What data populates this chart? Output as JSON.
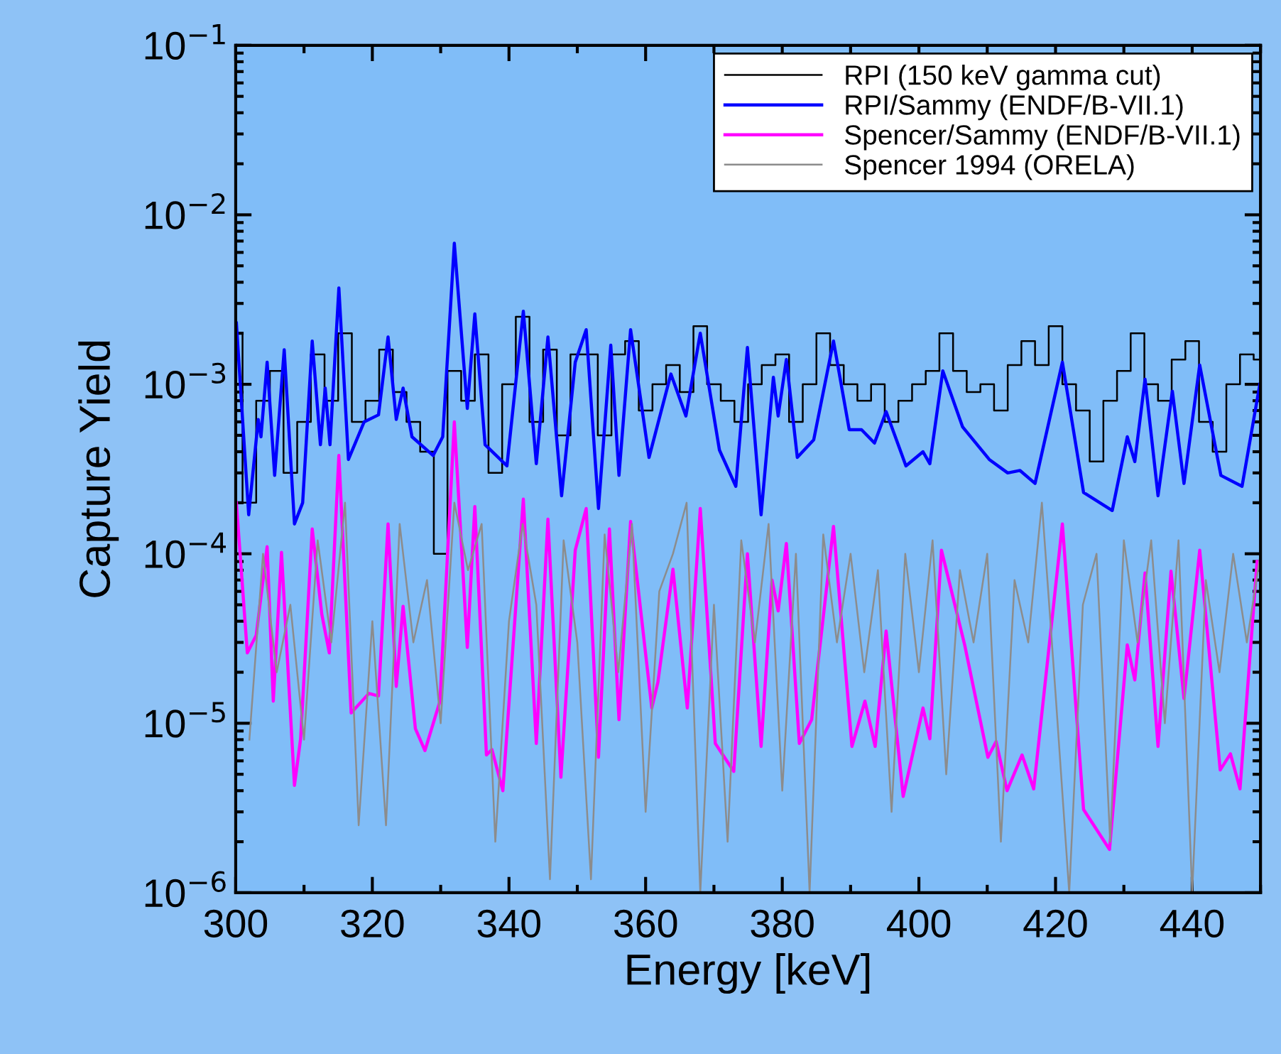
{
  "chart_data": {
    "type": "line",
    "xlabel": "Energy [keV]",
    "ylabel": "Capture Yield",
    "log": "y",
    "grid": false,
    "legend": "top right",
    "xlim": [
      300,
      450
    ],
    "xticks": [
      300,
      320,
      340,
      360,
      380,
      400,
      420,
      440
    ],
    "ylim": [
      1e-06,
      0.1
    ],
    "yticks": [
      {
        "value": 1e-06,
        "label": "10$^{−6}$"
      },
      {
        "value": 1e-05,
        "label": "10$^{−5}$"
      },
      {
        "value": 0.0001,
        "label": "10$^{−4}$"
      },
      {
        "value": 0.001,
        "label": "10$^{−3}$"
      },
      {
        "value": 0.01,
        "label": "10$^{−2}$"
      },
      {
        "value": 0.1,
        "label": "10$^{−1}$"
      }
    ],
    "series": [
      {
        "name": "RPI (150 keV gamma cut)",
        "type": "step",
        "color": "#000000",
        "x": [
          300,
          302,
          304,
          306,
          308,
          310,
          312,
          314,
          316,
          318,
          320,
          322,
          324,
          326,
          328,
          330,
          332,
          334,
          336,
          338,
          340,
          342,
          344,
          346,
          348,
          350,
          352,
          354,
          356,
          358,
          360,
          362,
          364,
          366,
          368,
          370,
          372,
          374,
          376,
          378,
          380,
          382,
          384,
          386,
          388,
          390,
          392,
          394,
          396,
          398,
          400,
          402,
          404,
          406,
          408,
          410,
          412,
          414,
          416,
          418,
          420,
          422,
          424,
          426,
          428,
          430,
          432,
          434,
          436,
          438,
          440,
          442,
          444,
          446,
          448,
          450
        ],
        "values": [
          0.002,
          0.0002,
          0.0008,
          0.0012,
          0.0003,
          0.0006,
          0.0015,
          0.0008,
          0.002,
          0.0006,
          0.0008,
          0.0016,
          0.0009,
          0.0006,
          0.0004,
          0.0001,
          0.0012,
          0.0008,
          0.0015,
          0.0003,
          0.001,
          0.0025,
          0.0006,
          0.0016,
          0.0005,
          0.0015,
          0.0015,
          0.0005,
          0.0015,
          0.0018,
          0.0007,
          0.001,
          0.0013,
          0.0009,
          0.0022,
          0.001,
          0.0008,
          0.0006,
          0.001,
          0.0013,
          0.0015,
          0.0006,
          0.001,
          0.002,
          0.0013,
          0.001,
          0.0008,
          0.001,
          0.0006,
          0.0008,
          0.001,
          0.0012,
          0.002,
          0.0012,
          0.0009,
          0.001,
          0.0007,
          0.0013,
          0.0018,
          0.0013,
          0.0022,
          0.001,
          0.0007,
          0.00035,
          0.0008,
          0.0012,
          0.002,
          0.001,
          0.0008,
          0.0014,
          0.0018,
          0.0006,
          0.0004,
          0.001,
          0.0015,
          0.0014
        ]
      },
      {
        "name": "RPI/Sammy (ENDF/B-VII.1)",
        "color": "#0000ff",
        "x": [
          300.1,
          301.9,
          303.3,
          303.7,
          304.6,
          305.7,
          307.1,
          308.6,
          309.8,
          311.2,
          312.4,
          313.1,
          313.8,
          315.1,
          316.5,
          318.8,
          320.9,
          322.3,
          323.5,
          324.5,
          325.8,
          328.9,
          330.3,
          332.0,
          333.9,
          335.0,
          336.5,
          339.7,
          342.1,
          344.0,
          345.7,
          347.7,
          349.7,
          351.3,
          353.1,
          354.9,
          356.1,
          357.8,
          360.5,
          363.7,
          365.9,
          368.0,
          370.8,
          373.2,
          374.9,
          376.9,
          378.7,
          379.4,
          380.6,
          382.2,
          384.6,
          387.5,
          389.8,
          391.6,
          393.5,
          395.2,
          398.1,
          400.6,
          401.6,
          403.5,
          406.4,
          410.3,
          413.0,
          414.8,
          417.0,
          421.0,
          424.1,
          428.3,
          430.5,
          431.6,
          433.1,
          435.0,
          437.1,
          438.8,
          441.1,
          444.2,
          447.3,
          449.9
        ],
        "values": [
          0.0023,
          0.00017,
          0.00062,
          0.00049,
          0.00135,
          0.00029,
          0.0016,
          0.00015,
          0.0002,
          0.0018,
          0.00044,
          0.00095,
          0.00044,
          0.0037,
          0.00036,
          0.0006,
          0.00066,
          0.0019,
          0.00062,
          0.00095,
          0.00049,
          0.00038,
          0.00049,
          0.0068,
          0.00072,
          0.0026,
          0.00044,
          0.00033,
          0.0027,
          0.00034,
          0.0019,
          0.00022,
          0.00135,
          0.0021,
          0.000185,
          0.0017,
          0.00029,
          0.0021,
          0.00037,
          0.00115,
          0.00065,
          0.002,
          0.00041,
          0.00025,
          0.00165,
          0.00017,
          0.0011,
          0.00065,
          0.0014,
          0.00037,
          0.00047,
          0.0018,
          0.00054,
          0.00054,
          0.00045,
          0.00069,
          0.00033,
          0.0004,
          0.00034,
          0.0012,
          0.00056,
          0.00036,
          0.0003,
          0.00031,
          0.00026,
          0.00135,
          0.00023,
          0.00018,
          0.00049,
          0.00035,
          0.00107,
          0.00022,
          0.00091,
          0.00026,
          0.0013,
          0.00029,
          0.00025,
          0.001
        ]
      },
      {
        "name": "Spencer/Sammy (ENDF/B-VII.1)",
        "color": "#ff00ff",
        "x": [
          300.1,
          301.7,
          303.0,
          304.6,
          305.5,
          306.7,
          308.6,
          309.5,
          311.2,
          312.6,
          313.7,
          315.1,
          316.9,
          319.5,
          320.9,
          322.3,
          323.5,
          324.5,
          326.3,
          327.7,
          329.9,
          332.0,
          333.9,
          335.0,
          336.7,
          337.5,
          339.1,
          342.1,
          344.0,
          345.7,
          347.6,
          349.7,
          351.3,
          353.1,
          354.7,
          356.1,
          357.8,
          360.9,
          361.8,
          364.0,
          366.1,
          368.0,
          370.2,
          372.9,
          374.9,
          376.9,
          378.5,
          379.4,
          380.6,
          382.5,
          384.3,
          387.5,
          390.2,
          392.1,
          393.6,
          395.2,
          397.7,
          400.6,
          401.6,
          403.3,
          406.7,
          410.1,
          411.3,
          412.9,
          415.1,
          416.8,
          421.0,
          424.1,
          427.9,
          430.5,
          431.6,
          433.1,
          435.0,
          436.9,
          438.8,
          441.1,
          444.1,
          445.6,
          447.0,
          449.5
        ],
        "values": [
          0.0002,
          2.6e-05,
          3.3e-05,
          0.00011,
          1.35e-05,
          0.000102,
          4.3e-06,
          8.1e-06,
          0.00014,
          4.4e-05,
          2.6e-05,
          0.00038,
          1.15e-05,
          1.5e-05,
          1.45e-05,
          0.00015,
          1.65e-05,
          4.9e-05,
          9.3e-06,
          6.9e-06,
          1.35e-05,
          0.0006,
          2.8e-05,
          0.00019,
          6.5e-06,
          7e-06,
          4e-06,
          0.00021,
          7.6e-06,
          0.00016,
          4.8e-06,
          0.000105,
          0.000185,
          6.3e-06,
          0.00014,
          1.05e-05,
          0.000155,
          1.23e-05,
          1.75e-05,
          8.1e-05,
          1.23e-05,
          0.000185,
          7.6e-06,
          5.2e-06,
          0.0001,
          7.3e-06,
          7e-05,
          4.6e-05,
          0.000115,
          7.6e-06,
          1.05e-05,
          0.000145,
          7.3e-06,
          1.35e-05,
          7.3e-06,
          3.5e-05,
          3.7e-06,
          1.23e-05,
          8.1e-06,
          0.000105,
          2.9e-05,
          6.3e-06,
          7.8e-06,
          4e-06,
          6.5e-06,
          4.1e-06,
          0.00015,
          3.1e-06,
          1.8e-06,
          2.9e-05,
          1.8e-05,
          7.7e-05,
          7.3e-06,
          7.9e-05,
          1.4e-05,
          0.000105,
          5.3e-06,
          6.6e-06,
          4.1e-06,
          9e-05
        ]
      },
      {
        "name": "Spencer 1994 (ORELA)",
        "color": "#8c8c8c",
        "x": [
          302,
          304,
          306,
          308,
          310,
          312,
          314,
          316,
          318,
          320,
          322,
          324,
          326,
          328,
          330,
          332,
          334,
          336,
          338,
          340,
          342,
          344,
          346,
          348,
          350,
          352,
          354,
          356,
          358,
          360,
          362,
          364,
          366,
          368,
          370,
          372,
          374,
          376,
          378,
          380,
          382,
          384,
          386,
          388,
          390,
          392,
          394,
          396,
          398,
          400,
          402,
          404,
          406,
          408,
          410,
          412,
          414,
          416,
          418,
          420,
          422,
          424,
          426,
          428,
          430,
          432,
          434,
          436,
          438,
          440,
          442,
          444,
          446,
          448,
          450
        ],
        "values": [
          8e-06,
          0.0001,
          2e-05,
          5e-05,
          8e-06,
          0.00012,
          3e-05,
          0.0002,
          2.5e-06,
          4e-05,
          2.5e-06,
          0.00015,
          3e-05,
          7e-05,
          1e-05,
          0.0002,
          8e-05,
          0.00015,
          2e-06,
          4e-05,
          0.00015,
          5e-05,
          1.2e-06,
          0.00012,
          3e-05,
          1.2e-06,
          0.00013,
          2e-05,
          0.00015,
          3e-06,
          6e-05,
          0.0001,
          0.0002,
          1e-06,
          5e-05,
          2e-06,
          0.00012,
          3e-05,
          0.00015,
          4e-06,
          0.0001,
          1e-06,
          0.00013,
          3e-05,
          0.0001,
          2e-05,
          8e-05,
          3e-06,
          0.0001,
          2e-05,
          0.00012,
          5e-06,
          8e-05,
          3e-05,
          0.0001,
          2e-06,
          7e-05,
          3e-05,
          0.0002,
          1.5e-05,
          1e-06,
          5e-05,
          0.0001,
          2e-06,
          0.00012,
          3e-05,
          0.00012,
          1e-05,
          0.00012,
          1e-06,
          7e-05,
          2e-05,
          0.0001,
          3e-05,
          0.0001
        ]
      }
    ]
  }
}
